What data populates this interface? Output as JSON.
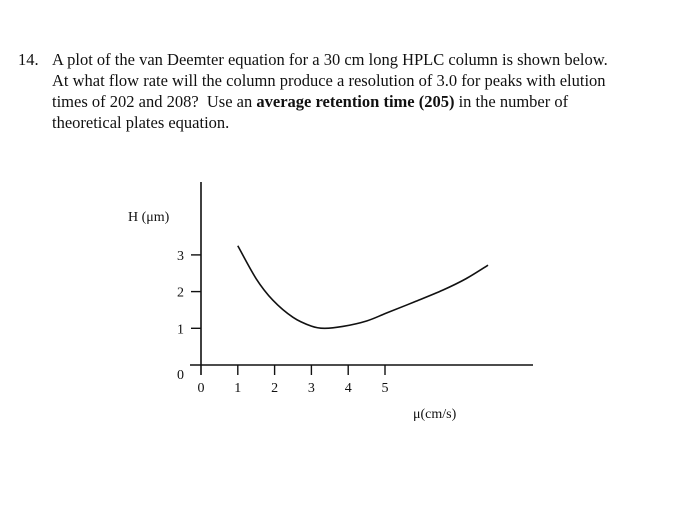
{
  "question": {
    "number": "14.",
    "lines": [
      "A plot of the van Deemter equation for a 30 cm long HPLC column is shown below.",
      "At what flow rate will the column produce a resolution of 3.0 for peaks with elution",
      "times of 202 and 208?  Use an ",
      "theoretical plates equation."
    ],
    "bold_text": "average retention time (205)",
    "line3_tail": " in the number of"
  },
  "chart_data": {
    "type": "line",
    "title": "",
    "xlabel": "μ(cm/s)",
    "ylabel": "H (μm)",
    "x_ticks": [
      "0",
      "1",
      "2",
      "3",
      "4",
      "5"
    ],
    "y_ticks": [
      "0",
      "1",
      "2",
      "3"
    ],
    "xlim": [
      0,
      9
    ],
    "ylim": [
      0,
      4.9
    ],
    "grid": false,
    "series": [
      {
        "x": [
          1.0,
          1.5,
          1.95,
          2.5,
          3.0,
          3.35,
          3.85,
          4.5,
          5.05,
          5.8,
          6.57,
          7.2,
          7.8
        ],
        "y": [
          3.25,
          2.35,
          1.77,
          1.3,
          1.06,
          1.0,
          1.05,
          1.2,
          1.42,
          1.72,
          2.04,
          2.35,
          2.72
        ]
      }
    ],
    "color": "#111111"
  }
}
